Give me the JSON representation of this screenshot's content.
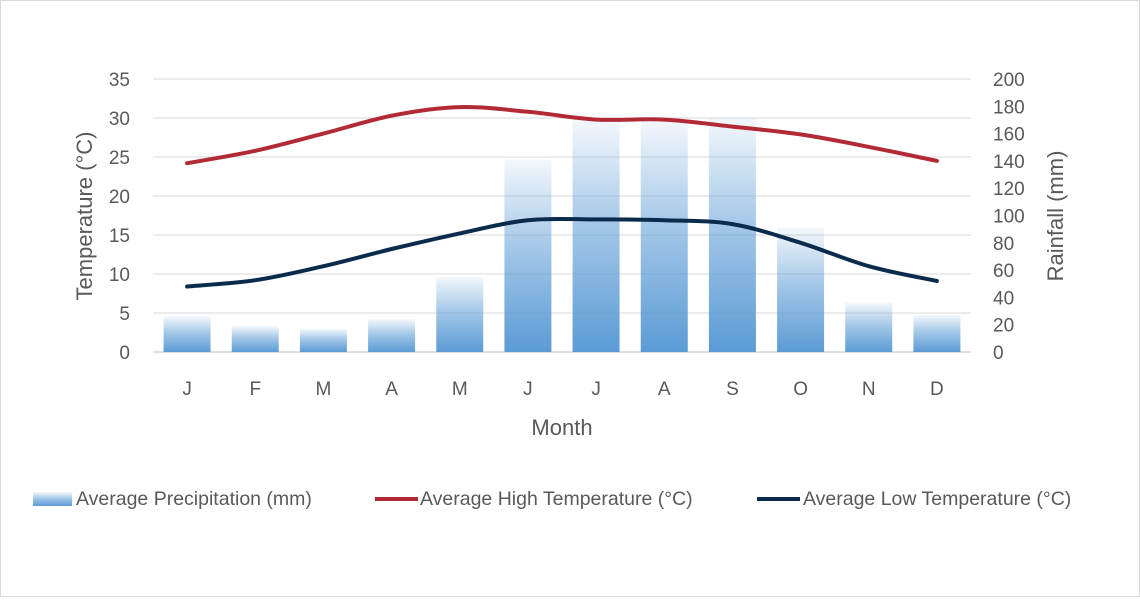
{
  "chart_data": {
    "type": "bar",
    "title": "",
    "xlabel": "Month",
    "ylabel": "Temperature (°C)",
    "y2label": "Rainfall (mm)",
    "categories": [
      "J",
      "F",
      "M",
      "A",
      "M",
      "J",
      "J",
      "A",
      "S",
      "O",
      "N",
      "D"
    ],
    "ylim": [
      0,
      35
    ],
    "y2lim": [
      0,
      200
    ],
    "yticks": [
      "0",
      "5",
      "10",
      "15",
      "20",
      "25",
      "30",
      "35"
    ],
    "y2ticks": [
      "0",
      "20",
      "40",
      "60",
      "80",
      "100",
      "120",
      "140",
      "160",
      "180",
      "200"
    ],
    "grid": true,
    "legend_position": "bottom",
    "series": [
      {
        "name": "Average Precipitation (mm)",
        "type": "bar",
        "axis": "right",
        "color": "#5b9bd5",
        "values": [
          26,
          19,
          17,
          24,
          55,
          141,
          170,
          170,
          172,
          91,
          36,
          27
        ]
      },
      {
        "name": "Average High Temperature (°C)",
        "type": "line",
        "axis": "left",
        "color": "#b22a35",
        "values": [
          24.2,
          25.8,
          28.0,
          30.3,
          31.4,
          30.8,
          29.8,
          29.8,
          28.9,
          27.9,
          26.3,
          24.5
        ]
      },
      {
        "name": "Average Low Temperature (°C)",
        "type": "line",
        "axis": "left",
        "color": "#0b2b4d",
        "values": [
          8.4,
          9.2,
          11.0,
          13.2,
          15.2,
          16.9,
          17.0,
          16.9,
          16.4,
          14.0,
          11.0,
          9.1
        ]
      }
    ]
  }
}
